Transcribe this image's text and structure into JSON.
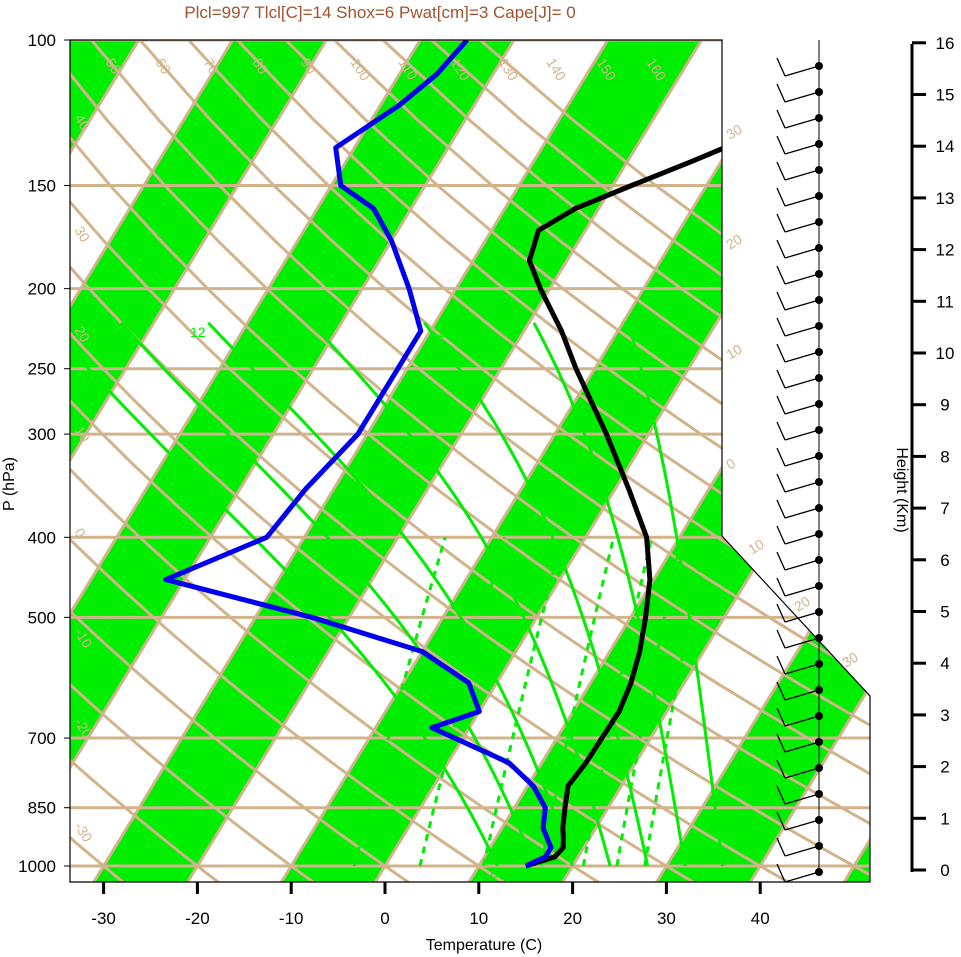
{
  "title": "Plcl=997 Tlcl[C]=14 Shox=6 Pwat[cm]=3 Cape[J]= 0",
  "colors": {
    "band": "#00ee00",
    "isotherm": "#d2b48c",
    "temperature": "#000000",
    "dewpoint": "#0000ee",
    "title": "#a0522d",
    "mixing_ratio": "#00ee00"
  },
  "chart_data": {
    "type": "line",
    "diagram": "skew-T log-P",
    "xlabel": "Temperature (C)",
    "ylabel": "P (hPa)",
    "xlim": [
      -33,
      51
    ],
    "ylim": [
      1050,
      100
    ],
    "x_ticks": [
      -30,
      -20,
      -10,
      0,
      10,
      20,
      30,
      40
    ],
    "pressure_ticks": [
      100,
      150,
      200,
      250,
      300,
      400,
      500,
      700,
      850,
      1000
    ],
    "y_scale": "log",
    "grid": true,
    "isotherm_labels": [
      50,
      60,
      70,
      80,
      90,
      100,
      110,
      120,
      130,
      140,
      150,
      160,
      40,
      30,
      20,
      10,
      0,
      -10,
      -20,
      -30,
      30,
      20,
      10,
      0,
      10,
      20,
      30
    ],
    "mixing_ratio_labels": [
      12,
      16,
      24,
      32,
      3,
      8
    ],
    "series": [
      {
        "key": "temperature",
        "points": [
          [
            1000,
            15.0
          ],
          [
            975,
            17.5
          ],
          [
            950,
            17.8
          ],
          [
            925,
            17.2
          ],
          [
            900,
            16.5
          ],
          [
            850,
            15.4
          ],
          [
            800,
            14.3
          ],
          [
            750,
            14.7
          ],
          [
            700,
            14.8
          ],
          [
            650,
            14.9
          ],
          [
            600,
            14.3
          ],
          [
            550,
            13.2
          ],
          [
            500,
            11.6
          ],
          [
            450,
            9.6
          ],
          [
            400,
            6.5
          ],
          [
            350,
            1.5
          ],
          [
            300,
            -4.5
          ],
          [
            250,
            -12.0
          ],
          [
            225,
            -16.0
          ],
          [
            200,
            -21.0
          ],
          [
            185,
            -24.0
          ],
          [
            170,
            -25.0
          ],
          [
            160,
            -22.5
          ],
          [
            150,
            -18.0
          ],
          [
            140,
            -13.0
          ],
          [
            130,
            -8.0
          ],
          [
            120,
            -4.0
          ],
          [
            110,
            0.0
          ],
          [
            100,
            4.0
          ]
        ]
      },
      {
        "key": "dewpoint",
        "points": [
          [
            1000,
            15.0
          ],
          [
            975,
            16.5
          ],
          [
            950,
            16.5
          ],
          [
            900,
            14.4
          ],
          [
            850,
            13.3
          ],
          [
            800,
            10.6
          ],
          [
            750,
            6.5
          ],
          [
            680,
            -4.0
          ],
          [
            650,
            0.0
          ],
          [
            600,
            -3.0
          ],
          [
            550,
            -10.0
          ],
          [
            500,
            -24.0
          ],
          [
            450,
            -42.0
          ],
          [
            400,
            -34.0
          ],
          [
            350,
            -33.0
          ],
          [
            300,
            -31.0
          ],
          [
            250,
            -31.0
          ],
          [
            225,
            -31.0
          ],
          [
            200,
            -35.0
          ],
          [
            175,
            -40.0
          ],
          [
            160,
            -44.0
          ],
          [
            150,
            -49.0
          ],
          [
            135,
            -52.0
          ],
          [
            120,
            -48.0
          ],
          [
            110,
            -46.0
          ],
          [
            100,
            -45.0
          ]
        ]
      }
    ],
    "height_axis": {
      "label": "Height (Km)",
      "ticks": [
        0,
        1,
        2,
        3,
        4,
        5,
        6,
        7,
        8,
        9,
        10,
        11,
        12,
        13,
        14,
        15,
        16
      ]
    }
  }
}
